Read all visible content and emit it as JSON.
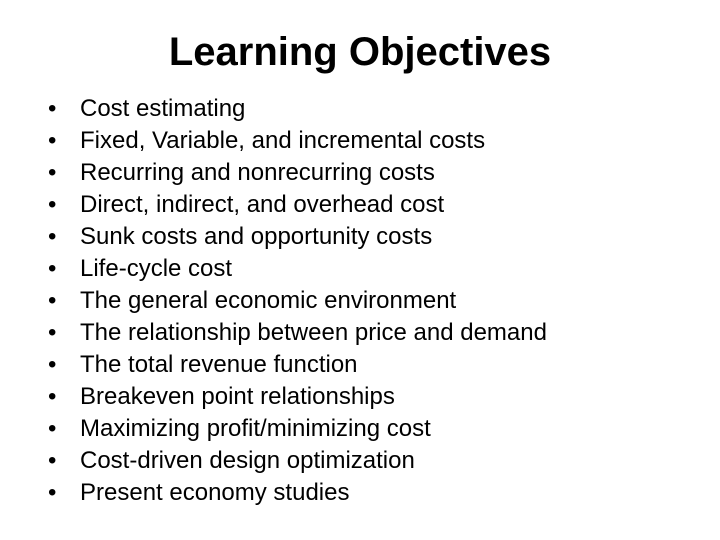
{
  "title": "Learning Objectives",
  "bullets": [
    "Cost estimating",
    "Fixed, Variable, and incremental costs",
    "Recurring and nonrecurring costs",
    "Direct, indirect, and overhead cost",
    "Sunk costs and opportunity costs",
    "Life-cycle cost",
    "The general economic environment",
    "The relationship between price and demand",
    "The total revenue function",
    "Breakeven point relationships",
    "Maximizing profit/minimizing cost",
    "Cost-driven design optimization",
    "Present economy studies"
  ],
  "style": {
    "background_color": "#ffffff",
    "text_color": "#000000",
    "title_fontsize": 40,
    "title_fontweight": "bold",
    "body_fontsize": 24,
    "font_family": "Arial",
    "bullet_marker": "•"
  }
}
